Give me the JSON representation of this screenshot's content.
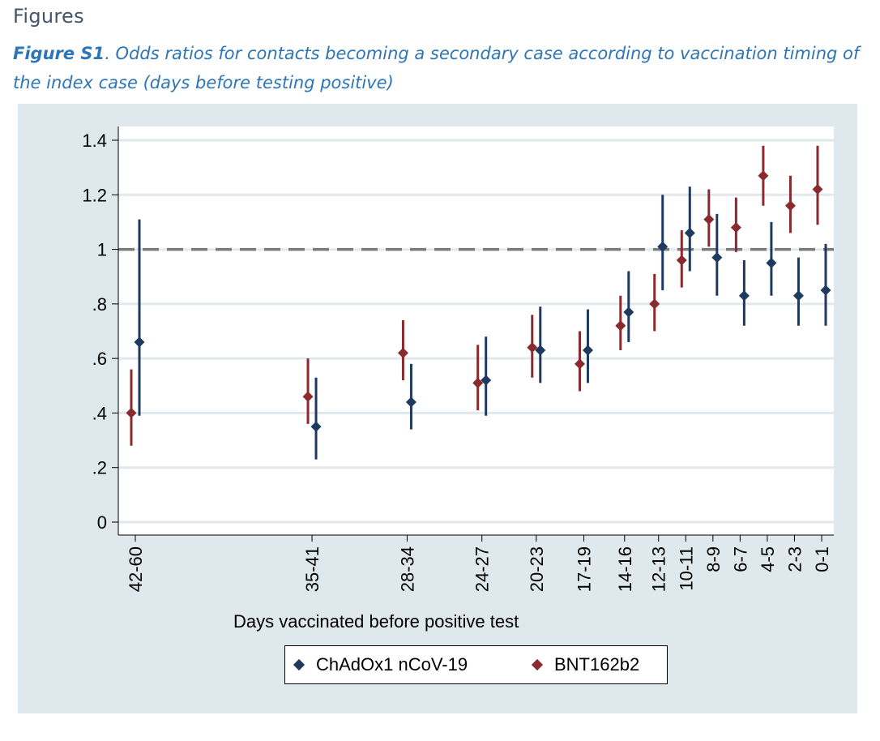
{
  "page": {
    "heading": "Figures",
    "caption_label": "Figure S1",
    "caption_text": ". Odds ratios for contacts becoming a secondary case according to vaccination timing of the index case (days before testing positive)"
  },
  "chart_data": {
    "type": "scatter",
    "subtype": "point estimates with confidence intervals",
    "xlabel": "Days vaccinated before positive test",
    "ylabel": "",
    "ylim": [
      0,
      1.4
    ],
    "y_ticks": [
      0,
      0.2,
      0.4,
      0.6,
      0.8,
      1,
      1.2,
      1.4
    ],
    "y_tick_labels": [
      "0",
      ".2",
      ".4",
      ".6",
      ".8",
      "1",
      "1.2",
      "1.4"
    ],
    "reference_line": 1,
    "grid": "horizontal",
    "legend_position": "bottom",
    "categories": [
      {
        "label": "42-60",
        "days": 51
      },
      {
        "label": "35-41",
        "days": 38
      },
      {
        "label": "28-34",
        "days": 31
      },
      {
        "label": "24-27",
        "days": 25.5
      },
      {
        "label": "20-23",
        "days": 21.5
      },
      {
        "label": "17-19",
        "days": 18
      },
      {
        "label": "14-16",
        "days": 15
      },
      {
        "label": "12-13",
        "days": 12.5
      },
      {
        "label": "10-11",
        "days": 10.5
      },
      {
        "label": "8-9",
        "days": 8.5
      },
      {
        "label": "6-7",
        "days": 6.5
      },
      {
        "label": "4-5",
        "days": 4.5
      },
      {
        "label": "2-3",
        "days": 2.5
      },
      {
        "label": "0-1",
        "days": 0.5
      }
    ],
    "series": [
      {
        "name": "ChAdOx1 nCoV-19",
        "color": "#1f3a5f",
        "values": [
          0.66,
          0.35,
          0.44,
          0.52,
          0.63,
          0.63,
          0.77,
          1.01,
          1.06,
          0.97,
          0.83,
          0.95,
          0.83,
          0.85
        ],
        "lower": [
          0.39,
          0.23,
          0.34,
          0.39,
          0.51,
          0.51,
          0.66,
          0.85,
          0.92,
          0.83,
          0.72,
          0.83,
          0.72,
          0.72
        ],
        "upper": [
          1.11,
          0.53,
          0.58,
          0.68,
          0.79,
          0.78,
          0.92,
          1.2,
          1.23,
          1.13,
          0.96,
          1.1,
          0.97,
          1.02
        ]
      },
      {
        "name": "BNT162b2",
        "color": "#8b2a2e",
        "values": [
          0.4,
          0.46,
          0.62,
          0.51,
          0.64,
          0.58,
          0.72,
          0.8,
          0.96,
          1.11,
          1.08,
          1.27,
          1.16,
          1.22
        ],
        "lower": [
          0.28,
          0.36,
          0.52,
          0.41,
          0.53,
          0.48,
          0.63,
          0.7,
          0.86,
          1.01,
          0.99,
          1.16,
          1.06,
          1.09
        ],
        "upper": [
          0.56,
          0.6,
          0.74,
          0.65,
          0.76,
          0.7,
          0.83,
          0.91,
          1.07,
          1.22,
          1.19,
          1.38,
          1.27,
          1.38
        ]
      }
    ]
  }
}
